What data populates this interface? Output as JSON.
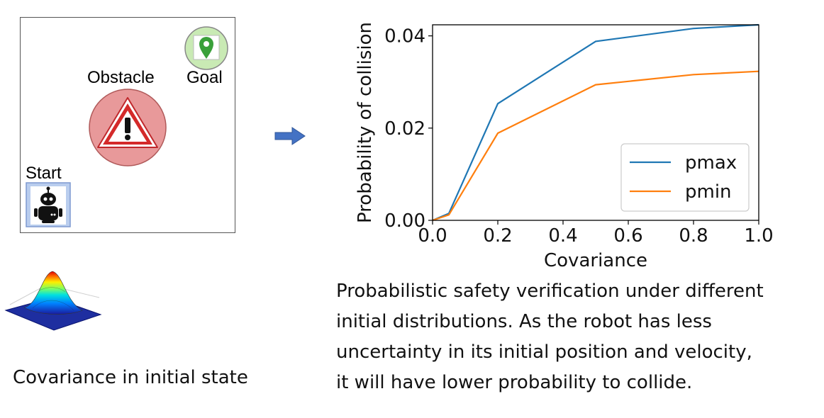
{
  "scene": {
    "obstacle_label": "Obstacle",
    "goal_label": "Goal",
    "start_label": "Start",
    "icons": [
      "warning-icon",
      "map-pin-icon",
      "robot-icon",
      "arrow-right-icon",
      "gaussian-surface-icon"
    ],
    "colors": {
      "obstacle_fill": "#e8999a",
      "goal_fill": "#c9eab4",
      "pin": "#3aa03a",
      "robot_frame": "#b9cdee",
      "arrow": "#4472c4"
    }
  },
  "chart_data": {
    "type": "line",
    "x": [
      0.0,
      0.05,
      0.2,
      0.5,
      0.8,
      1.0
    ],
    "series": [
      {
        "name": "pmax",
        "color": "#1f77b4",
        "values": [
          0.0,
          0.0015,
          0.0253,
          0.0388,
          0.0416,
          0.0424
        ]
      },
      {
        "name": "pmin",
        "color": "#ff7f0e",
        "values": [
          0.0,
          0.0012,
          0.0189,
          0.0294,
          0.0316,
          0.0323
        ]
      }
    ],
    "title": "",
    "xlabel": "Covariance",
    "ylabel": "Probability of collision",
    "xlim": [
      0.0,
      1.0
    ],
    "ylim": [
      0.0,
      0.0424
    ],
    "xticks": [
      "0.0",
      "0.2",
      "0.4",
      "0.6",
      "0.8",
      "1.0"
    ],
    "yticks": [
      "0.00",
      "0.02",
      "0.04"
    ],
    "grid": false,
    "legend": "lower-right"
  },
  "caption": {
    "lines": [
      "Probabilistic safety verification under different",
      "initial distributions. As the robot has less",
      "uncertainty in its initial position and velocity,",
      "it will have lower probability to collide."
    ],
    "covariance_label": "Covariance in initial state"
  }
}
